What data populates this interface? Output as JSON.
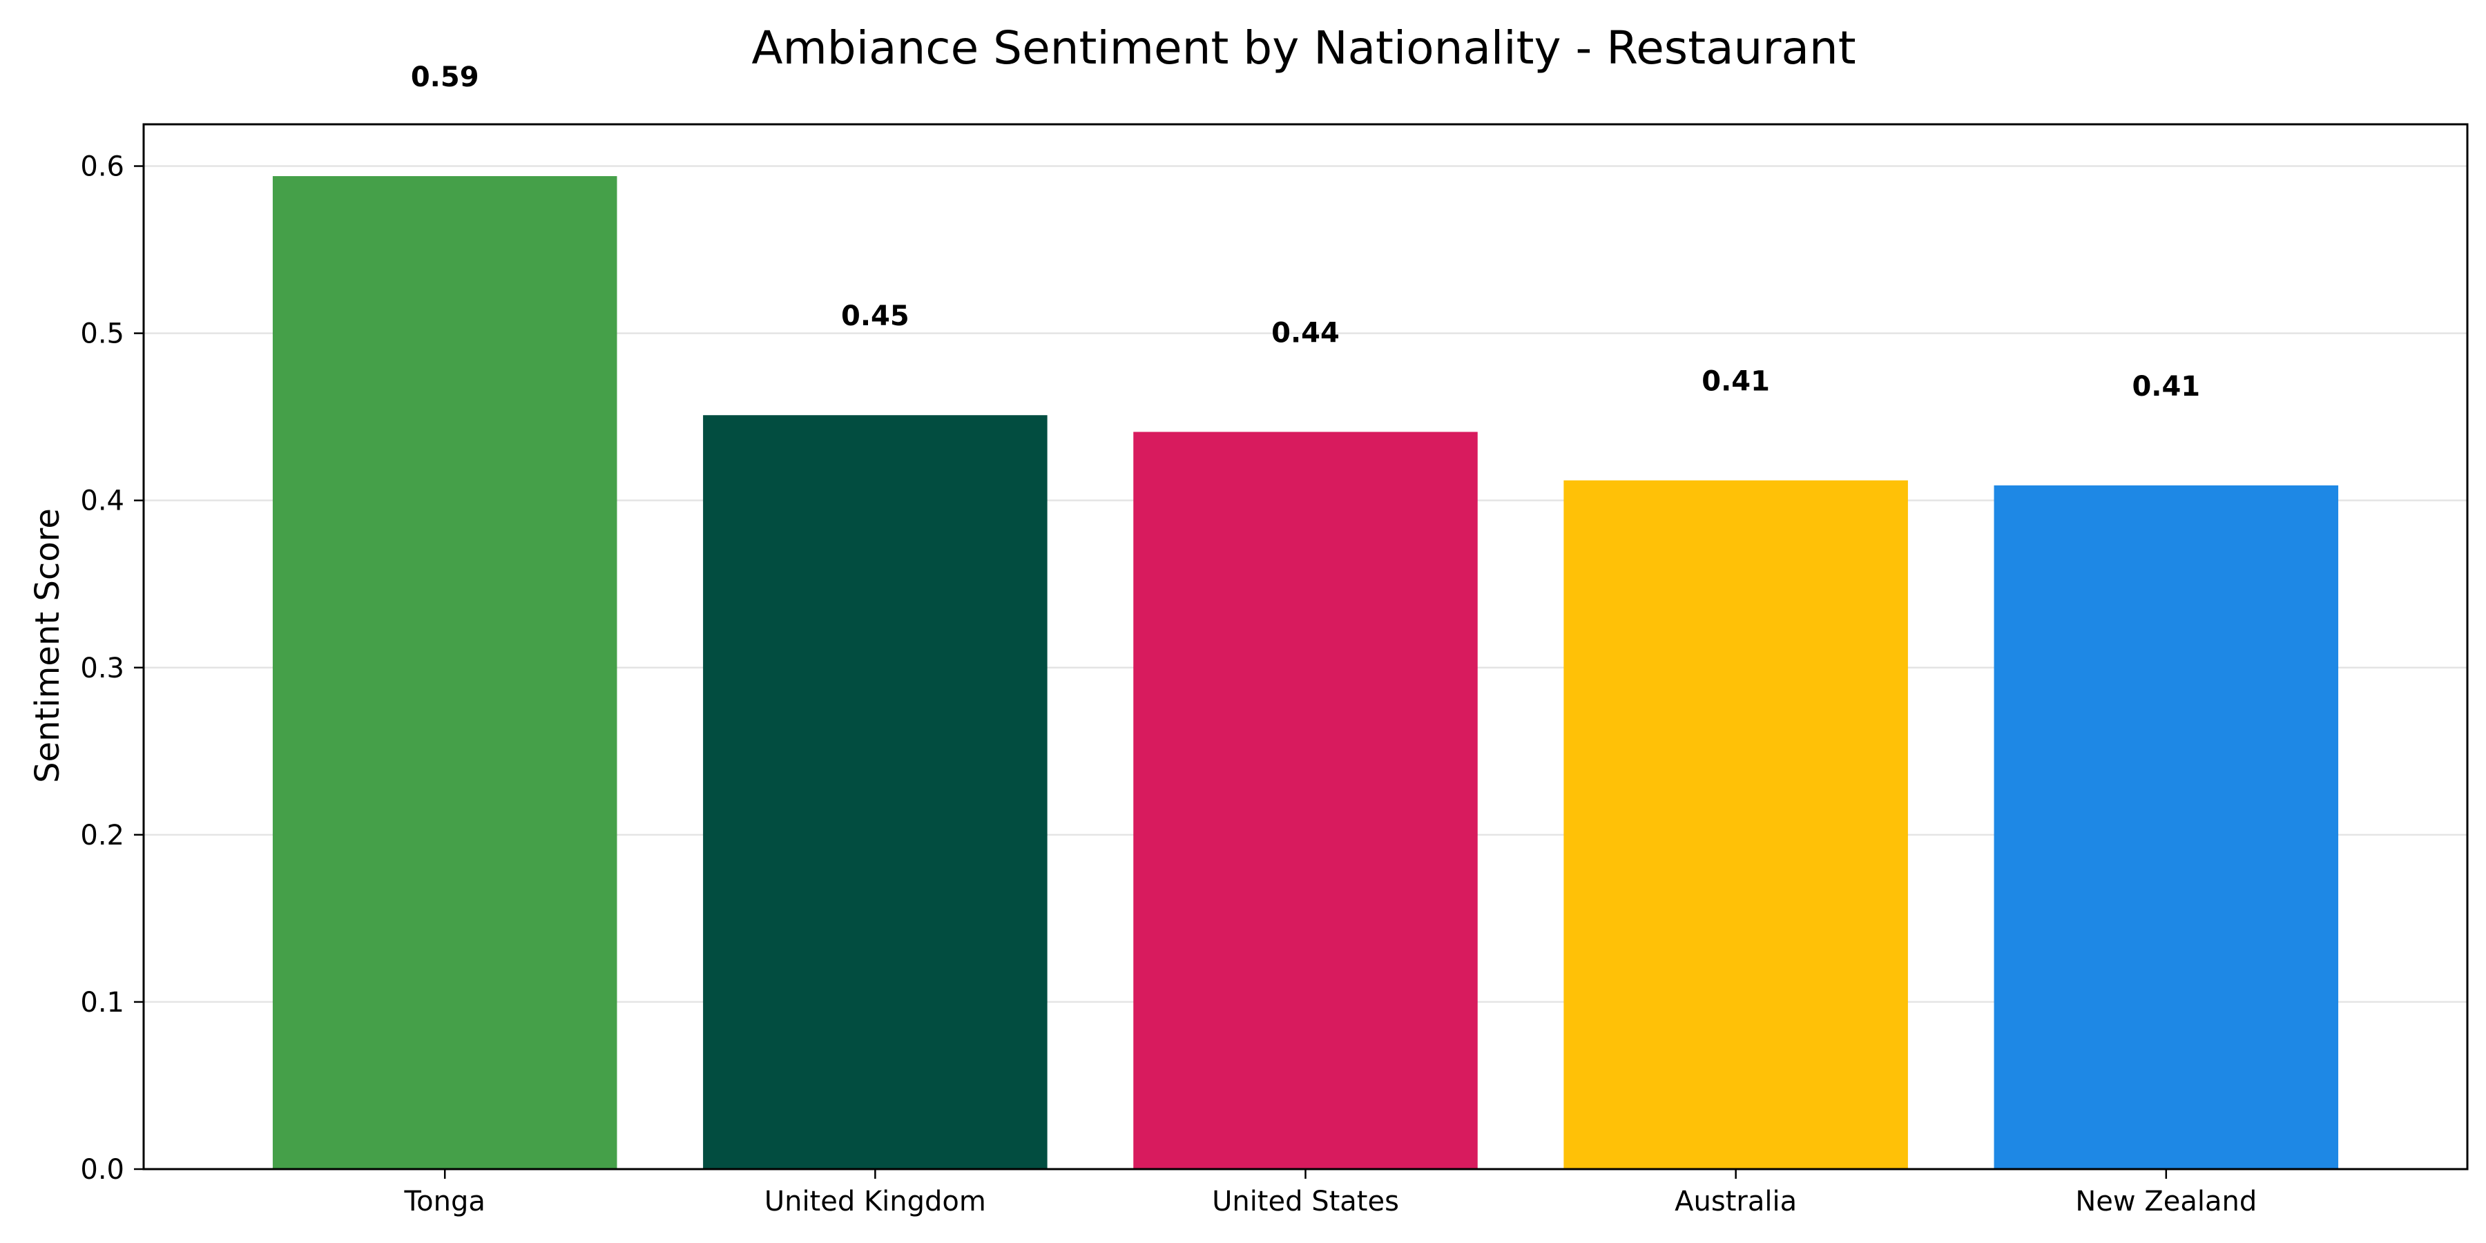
{
  "chart_data": {
    "type": "bar",
    "title": "Ambiance Sentiment by Nationality - Restaurant",
    "xlabel": "",
    "ylabel": "Sentiment Score",
    "categories": [
      "Tonga",
      "United Kingdom",
      "United States",
      "Australia",
      "New Zealand"
    ],
    "values": [
      0.594,
      0.451,
      0.441,
      0.412,
      0.409
    ],
    "value_labels": [
      "0.59",
      "0.45",
      "0.44",
      "0.41",
      "0.41"
    ],
    "colors": [
      "#45a049",
      "#024d40",
      "#d81b5e",
      "#ffc107",
      "#1e88e5"
    ],
    "ylim": [
      0,
      0.625
    ],
    "yticks": [
      0.0,
      0.1,
      0.2,
      0.3,
      0.4,
      0.5,
      0.6
    ],
    "ytick_labels": [
      "0.0",
      "0.1",
      "0.2",
      "0.3",
      "0.4",
      "0.5",
      "0.6"
    ],
    "grid": "y",
    "legend": "none"
  }
}
